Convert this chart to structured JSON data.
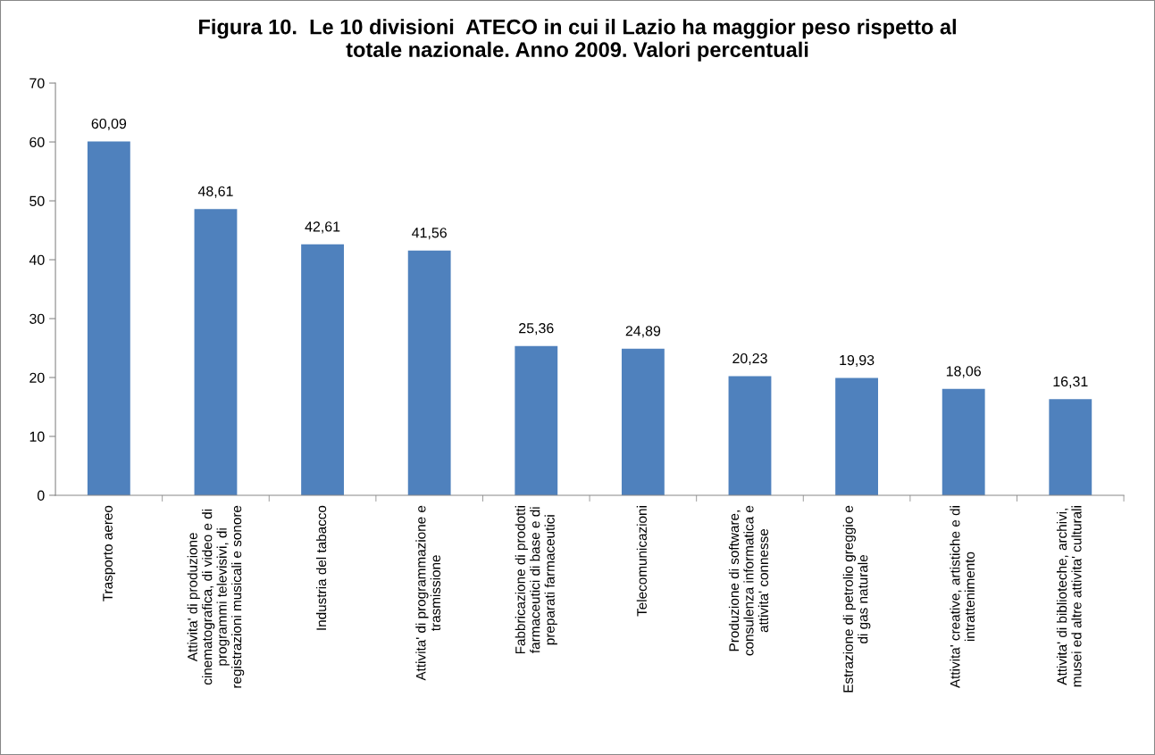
{
  "chart_data": {
    "type": "bar",
    "title": "Figura 10.  Le 10 divisioni  ATECO in cui il Lazio ha maggior peso rispetto al\ntotale nazionale. Anno 2009. Valori percentuali",
    "categories": [
      "Trasporto aereo",
      "Attivita' di produzione\ncinematografica, di video e di\nprogrammi televisivi, di\nregistrazioni musicali e sonore",
      "Industria del tabacco",
      "Attivita' di programmazione e\ntrasmissione",
      "Fabbricazione di prodotti\nfarmaceutici di base e di\npreparati farmaceutici",
      "Telecomunicazioni",
      "Produzione di software,\nconsulenza informatica e\nattivita' connesse",
      "Estrazione di petrolio greggio e\ndi gas naturale",
      "Attivita' creative, artistiche e di\nintrattenimento",
      "Attivita' di biblioteche, archivi,\nmusei ed altre attivita' culturali"
    ],
    "values": [
      60.09,
      48.61,
      42.61,
      41.56,
      25.36,
      24.89,
      20.23,
      19.93,
      18.06,
      16.31
    ],
    "value_labels": [
      "60,09",
      "48,61",
      "42,61",
      "41,56",
      "25,36",
      "24,89",
      "20,23",
      "19,93",
      "18,06",
      "16,31"
    ],
    "color": "#4f81bd",
    "ylim": [
      0,
      70
    ],
    "yticks": [
      0,
      10,
      20,
      30,
      40,
      50,
      60,
      70
    ],
    "grid": false
  }
}
